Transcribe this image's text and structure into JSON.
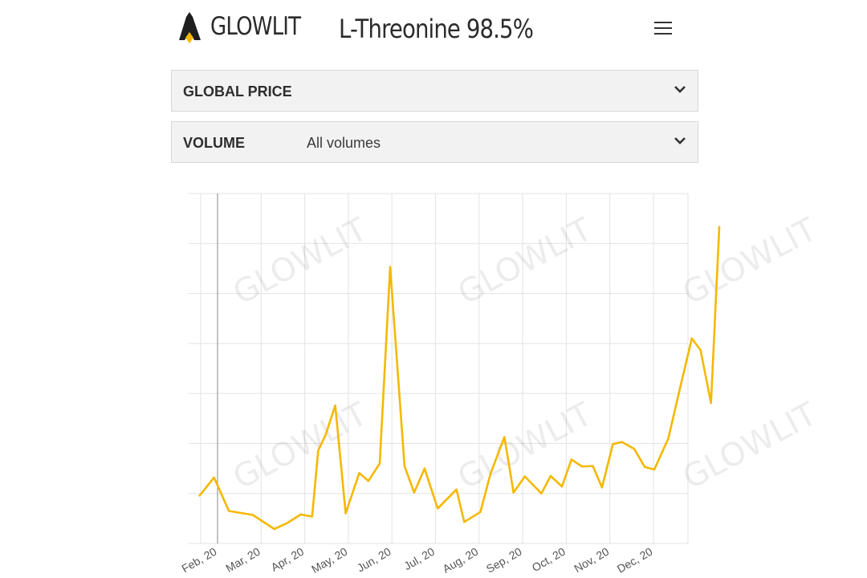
{
  "brand": {
    "name": "GLOWLIT",
    "accent": "#f5b800"
  },
  "header": {
    "title": "L-Threonine 98.5%"
  },
  "filters": {
    "price": {
      "label": "GLOBAL PRICE"
    },
    "volume": {
      "label": "VOLUME",
      "value": "All volumes"
    }
  },
  "icons": {
    "menu": "hamburger-icon",
    "dropdown": "chevron-down-icon",
    "logo": "flame-logo-icon"
  },
  "chart_data": {
    "type": "line",
    "line_color": "#f5b800",
    "grid": true,
    "watermark": "GLOWLIT",
    "x_ticks": [
      "Feb, 20",
      "Mar, 20",
      "Apr, 20",
      "May, 20",
      "Jun, 20",
      "Jul, 20",
      "Aug, 20",
      "Sep, 20",
      "Oct, 20",
      "Nov, 20",
      "Dec, 20"
    ],
    "x_range": [
      0,
      11.5
    ],
    "ylim": [
      0,
      7
    ],
    "series": [
      {
        "x": [
          -0.41,
          -0.08,
          0.26,
          0.81,
          1.3,
          1.58,
          1.91,
          2.17,
          2.31,
          2.47,
          2.7,
          2.94,
          3.25,
          3.46,
          3.72,
          3.96,
          4.29,
          4.51,
          4.75,
          5.05,
          5.48,
          5.66,
          6.03,
          6.26,
          6.58,
          6.79,
          7.05,
          7.43,
          7.64,
          7.9,
          8.12,
          8.36,
          8.61,
          8.82,
          9.07,
          9.28,
          9.56,
          9.8,
          10.02,
          10.34,
          10.62,
          10.88,
          11.08,
          11.32,
          11.51
        ],
        "y": [
          0.96,
          1.32,
          0.65,
          0.57,
          0.29,
          0.4,
          0.58,
          0.54,
          1.86,
          2.15,
          2.76,
          0.6,
          1.41,
          1.25,
          1.6,
          5.53,
          1.55,
          1.02,
          1.5,
          0.7,
          1.08,
          0.43,
          0.63,
          1.39,
          2.13,
          1.02,
          1.34,
          1.0,
          1.35,
          1.14,
          1.68,
          1.54,
          1.55,
          1.12,
          1.99,
          2.03,
          1.89,
          1.53,
          1.48,
          2.1,
          3.15,
          4.1,
          3.87,
          2.81,
          6.33
        ]
      }
    ]
  }
}
